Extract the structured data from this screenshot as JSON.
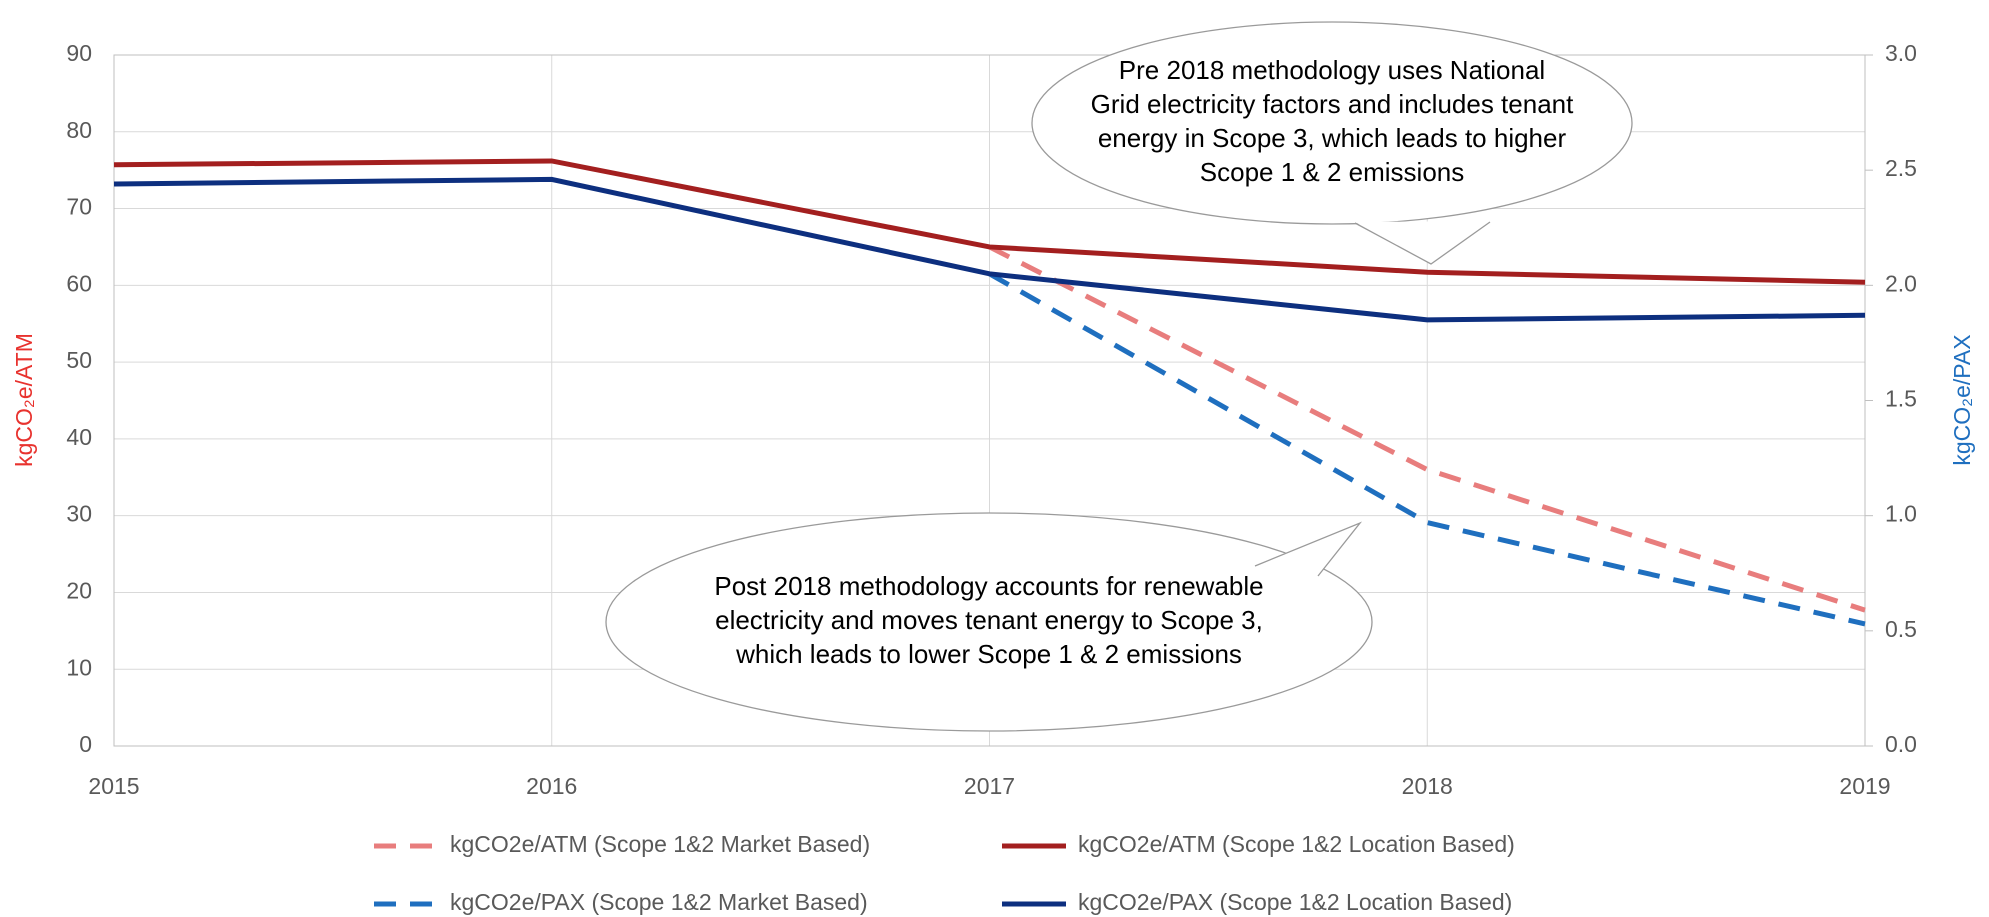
{
  "chart_data": {
    "type": "line",
    "x": [
      2015,
      2016,
      2017,
      2018,
      2019
    ],
    "xlim": [
      2015,
      2019
    ],
    "xticks": [
      2015,
      2016,
      2017,
      2018,
      2019
    ],
    "ylim": [
      0,
      90
    ],
    "yticks": [
      0,
      10,
      20,
      30,
      40,
      50,
      60,
      70,
      80,
      90
    ],
    "y2lim": [
      0,
      3
    ],
    "y2ticks": [
      {
        "value": 0,
        "label": "0.0"
      },
      {
        "value": 0.5,
        "label": "0.5"
      },
      {
        "value": 1,
        "label": "1.0"
      },
      {
        "value": 1.5,
        "label": "1.5"
      },
      {
        "value": 2,
        "label": "2.0"
      },
      {
        "value": 2.5,
        "label": "2.5"
      },
      {
        "value": 3,
        "label": "3.0"
      }
    ],
    "ylabel": "kgCO₂e/ATM",
    "y2label": "kgCO₂e/PAX",
    "grid": true,
    "series": [
      {
        "name": "kgCO2e/ATM (Scope 1&2 Market Based)",
        "color": "#e87d7d",
        "dashed": true,
        "values": [
          null,
          null,
          65.0,
          36.0,
          17.7
        ]
      },
      {
        "name": "kgCO2e/ATM (Scope 1&2 Location Based)",
        "color": "#a31f1f",
        "dashed": false,
        "values": [
          75.7,
          76.2,
          65.0,
          61.7,
          60.4
        ]
      },
      {
        "name": "kgCO2e/PAX (Scope 1&2 Market Based)",
        "color": "#1f6fbf",
        "dashed": true,
        "axis": "y2",
        "values": [
          null,
          null,
          2.05,
          0.97,
          0.53
        ]
      },
      {
        "name": "kgCO2e/PAX (Scope 1&2 Location Based)",
        "color": "#0d2f7f",
        "dashed": false,
        "axis": "y2",
        "values": [
          2.44,
          2.46,
          2.05,
          1.85,
          1.87
        ]
      }
    ],
    "annotations": [
      {
        "lines": [
          "Pre 2018 methodology uses National",
          "Grid electricity factors and includes tenant",
          "energy in Scope 3, which leads to higher",
          "Scope 1 & 2 emissions"
        ]
      },
      {
        "lines": [
          "Post 2018 methodology accounts for renewable",
          "electricity and moves tenant energy to Scope 3,",
          "which leads to lower Scope 1 & 2 emissions"
        ]
      }
    ]
  }
}
